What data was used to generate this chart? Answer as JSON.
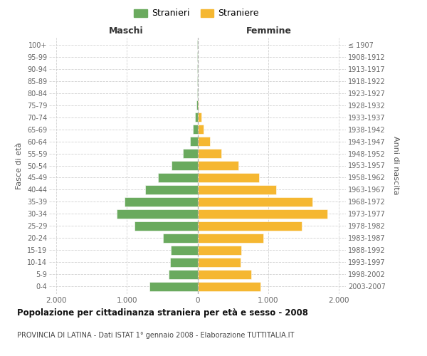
{
  "age_groups_bottom_to_top": [
    "0-4",
    "5-9",
    "10-14",
    "15-19",
    "20-24",
    "25-29",
    "30-34",
    "35-39",
    "40-44",
    "45-49",
    "50-54",
    "55-59",
    "60-64",
    "65-69",
    "70-74",
    "75-79",
    "80-84",
    "85-89",
    "90-94",
    "95-99",
    "100+"
  ],
  "birth_years_bottom_to_top": [
    "2003-2007",
    "1998-2002",
    "1993-1997",
    "1988-1992",
    "1983-1987",
    "1978-1982",
    "1973-1977",
    "1968-1972",
    "1963-1967",
    "1958-1962",
    "1953-1957",
    "1948-1952",
    "1943-1947",
    "1938-1942",
    "1933-1937",
    "1928-1932",
    "1923-1927",
    "1918-1922",
    "1913-1917",
    "1908-1912",
    "≤ 1907"
  ],
  "maschi_bottom_to_top": [
    680,
    410,
    390,
    380,
    490,
    890,
    1140,
    1030,
    740,
    560,
    370,
    210,
    110,
    65,
    40,
    15,
    8,
    5,
    3,
    2,
    2
  ],
  "femmine_bottom_to_top": [
    890,
    760,
    610,
    620,
    930,
    1480,
    1840,
    1630,
    1110,
    870,
    580,
    340,
    180,
    90,
    55,
    20,
    10,
    6,
    4,
    2,
    2
  ],
  "male_color": "#6aaa5e",
  "female_color": "#f5b731",
  "bg_color": "#ffffff",
  "grid_color": "#cccccc",
  "title": "Popolazione per cittadinanza straniera per età e sesso - 2008",
  "subtitle": "PROVINCIA DI LATINA - Dati ISTAT 1° gennaio 2008 - Elaborazione TUTTITALIA.IT",
  "col_header_left": "Maschi",
  "col_header_right": "Femmine",
  "ylabel_left": "Fasce di età",
  "ylabel_right": "Anni di nascita",
  "legend_male": "Stranieri",
  "legend_female": "Straniere",
  "xlim": 2100,
  "xtick_vals": [
    -2000,
    -1000,
    0,
    1000,
    2000
  ],
  "xticklabels": [
    "2.000",
    "1.000",
    "0",
    "1.000",
    "2.000"
  ]
}
